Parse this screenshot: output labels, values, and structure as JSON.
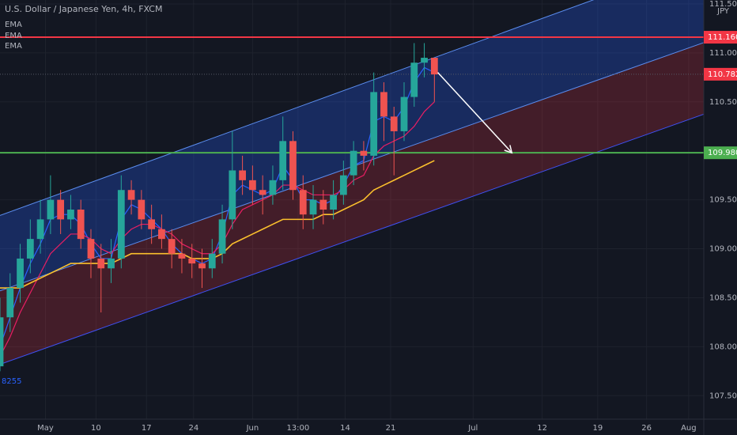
{
  "chart_data": {
    "type": "candlestick",
    "title": "U.S. Dollar / Japanese Yen, 4h, FXCM",
    "currency": "JPY",
    "low_label": "8255",
    "x": [
      0,
      6,
      12,
      18,
      24,
      30,
      36,
      42,
      48,
      54,
      60,
      66,
      72,
      78,
      84,
      90,
      96,
      102,
      108,
      114,
      120,
      126,
      132,
      138,
      144,
      150,
      156,
      162,
      168,
      174,
      180,
      186,
      192,
      198,
      204,
      210,
      216,
      222,
      228,
      234,
      240,
      246,
      252,
      258
    ],
    "open": [
      107.8,
      108.3,
      108.6,
      108.9,
      109.1,
      109.3,
      109.5,
      109.3,
      109.4,
      109.1,
      108.9,
      108.8,
      108.9,
      109.6,
      109.5,
      109.3,
      109.2,
      109.1,
      108.95,
      108.9,
      108.85,
      108.8,
      108.95,
      109.3,
      109.8,
      109.7,
      109.6,
      109.55,
      109.7,
      110.1,
      109.6,
      109.35,
      109.5,
      109.4,
      109.55,
      109.75,
      110.0,
      109.95,
      110.6,
      110.35,
      110.2,
      110.55,
      110.9,
      110.95
    ],
    "high": [
      108.5,
      108.75,
      109.05,
      109.3,
      109.5,
      109.75,
      109.6,
      109.55,
      109.5,
      109.2,
      109.05,
      109.1,
      109.75,
      109.7,
      109.6,
      109.45,
      109.35,
      109.2,
      109.1,
      109.05,
      109.0,
      109.1,
      109.45,
      110.2,
      109.95,
      109.85,
      109.75,
      109.85,
      110.35,
      110.2,
      109.75,
      109.65,
      109.6,
      109.7,
      109.9,
      110.1,
      110.1,
      110.8,
      110.7,
      110.45,
      110.7,
      111.1,
      111.1,
      110.95
    ],
    "low": [
      107.75,
      108.15,
      108.45,
      108.75,
      108.95,
      109.15,
      109.15,
      109.2,
      109.0,
      108.7,
      108.35,
      108.65,
      108.8,
      109.35,
      109.2,
      109.05,
      109.0,
      108.8,
      108.75,
      108.7,
      108.6,
      108.7,
      108.85,
      109.2,
      109.55,
      109.45,
      109.35,
      109.45,
      109.6,
      109.5,
      109.2,
      109.2,
      109.25,
      109.3,
      109.45,
      109.65,
      109.8,
      109.85,
      110.1,
      109.75,
      110.1,
      110.45,
      110.75,
      110.5
    ],
    "close": [
      108.3,
      108.6,
      108.9,
      109.1,
      109.3,
      109.5,
      109.3,
      109.4,
      109.1,
      108.9,
      108.8,
      108.9,
      109.6,
      109.5,
      109.3,
      109.2,
      109.1,
      108.95,
      108.9,
      108.85,
      108.8,
      108.95,
      109.3,
      109.8,
      109.7,
      109.6,
      109.55,
      109.7,
      110.1,
      109.6,
      109.35,
      109.5,
      109.4,
      109.55,
      109.75,
      110.0,
      109.95,
      110.6,
      110.35,
      110.2,
      110.55,
      110.9,
      110.95,
      110.78
    ],
    "up_color": "#26a69a",
    "down_color": "#ef5350",
    "series": [
      {
        "name": "EMA",
        "color": "#2962ff",
        "values": [
          108.0,
          108.3,
          108.6,
          108.85,
          109.05,
          109.3,
          109.35,
          109.35,
          109.25,
          109.05,
          108.9,
          108.9,
          109.3,
          109.45,
          109.4,
          109.3,
          109.2,
          109.05,
          108.95,
          108.9,
          108.85,
          108.9,
          109.15,
          109.55,
          109.65,
          109.6,
          109.55,
          109.6,
          109.85,
          109.7,
          109.5,
          109.5,
          109.45,
          109.5,
          109.65,
          109.85,
          109.9,
          110.3,
          110.35,
          110.3,
          110.45,
          110.7,
          110.85,
          110.8
        ]
      },
      {
        "name": "EMA",
        "color": "#e91e63",
        "values": [
          107.9,
          108.1,
          108.35,
          108.55,
          108.75,
          108.95,
          109.05,
          109.15,
          109.15,
          109.1,
          109.0,
          108.95,
          109.1,
          109.2,
          109.25,
          109.25,
          109.2,
          109.15,
          109.05,
          109.0,
          108.95,
          108.95,
          109.05,
          109.25,
          109.4,
          109.45,
          109.5,
          109.55,
          109.65,
          109.65,
          109.6,
          109.55,
          109.55,
          109.55,
          109.6,
          109.7,
          109.75,
          109.95,
          110.05,
          110.1,
          110.15,
          110.25,
          110.4,
          110.5
        ]
      },
      {
        "name": "EMA",
        "color": "#fbc02d",
        "values": [
          108.6,
          108.6,
          108.6,
          108.65,
          108.7,
          108.75,
          108.8,
          108.85,
          108.85,
          108.85,
          108.85,
          108.85,
          108.9,
          108.95,
          108.95,
          108.95,
          108.95,
          108.95,
          108.95,
          108.9,
          108.9,
          108.9,
          108.95,
          109.05,
          109.1,
          109.15,
          109.2,
          109.25,
          109.3,
          109.3,
          109.3,
          109.3,
          109.35,
          109.35,
          109.4,
          109.45,
          109.5,
          109.6,
          109.65,
          109.7,
          109.75,
          109.8,
          109.85,
          109.9
        ]
      }
    ],
    "channel": {
      "x": [
        0,
        437
      ],
      "upper": [
        109.34,
        112.07
      ],
      "middle": [
        108.57,
        111.22
      ],
      "lower": [
        107.82,
        110.49
      ]
    },
    "levels": [
      {
        "value": 111.16,
        "label": "111.160",
        "color": "#f23645",
        "style": "solid"
      },
      {
        "value": 110.782,
        "label": "110.782",
        "color": "#f23645",
        "style": "dotted"
      },
      {
        "value": 109.98,
        "label": "109.980",
        "color": "#4caf50",
        "style": "solid"
      }
    ],
    "arrow": {
      "x": [
        260,
        304
      ],
      "y": [
        110.8,
        109.98
      ]
    },
    "xlim": [
      0,
      418
    ],
    "ylim": [
      107.26,
      111.54
    ],
    "xticks": [
      {
        "value": 27,
        "label": "May"
      },
      {
        "value": 57,
        "label": "10"
      },
      {
        "value": 87,
        "label": "17"
      },
      {
        "value": 115,
        "label": "24"
      },
      {
        "value": 150,
        "label": "Jun"
      },
      {
        "value": 177,
        "label": "13:00"
      },
      {
        "value": 205,
        "label": "14"
      },
      {
        "value": 232,
        "label": "21"
      },
      {
        "value": 281,
        "label": "Jul"
      },
      {
        "value": 322,
        "label": "12"
      },
      {
        "value": 355,
        "label": "19"
      },
      {
        "value": 384,
        "label": "26"
      },
      {
        "value": 409,
        "label": "Aug"
      }
    ],
    "yticks": [
      {
        "value": 111.5,
        "label": "111.500"
      },
      {
        "value": 111.0,
        "label": "111.000"
      },
      {
        "value": 110.5,
        "label": "110.500"
      },
      {
        "value": 109.5,
        "label": "109.500"
      },
      {
        "value": 109.0,
        "label": "109.000"
      },
      {
        "value": 108.5,
        "label": "108.500"
      },
      {
        "value": 108.0,
        "label": "108.000"
      },
      {
        "value": 107.5,
        "label": "107.500"
      }
    ]
  }
}
